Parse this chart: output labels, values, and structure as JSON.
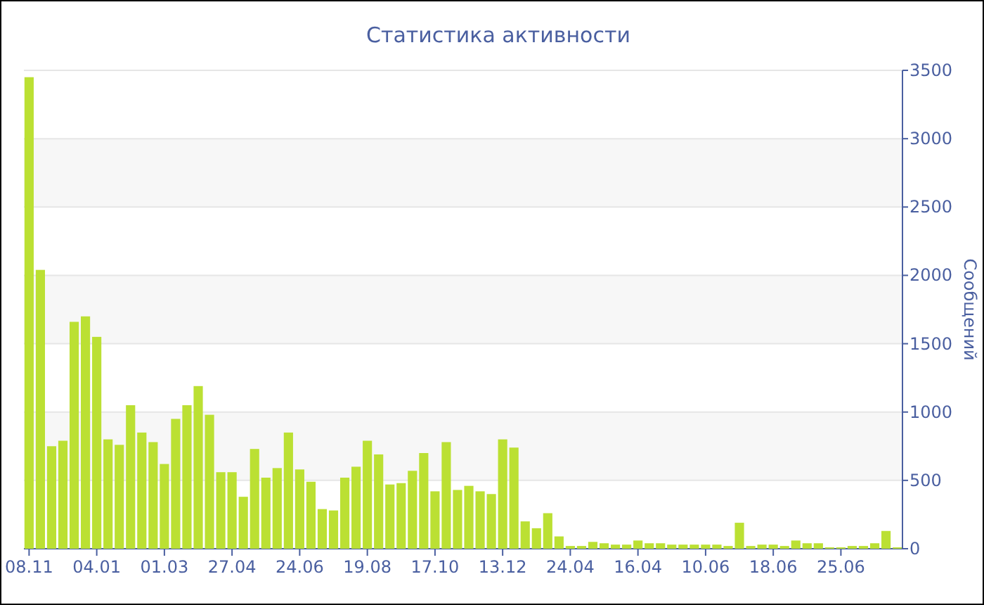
{
  "chart_data": {
    "type": "bar",
    "title": "Статистика активности",
    "ylabel": "Сообщений",
    "categories": [
      "08.11",
      null,
      null,
      null,
      null,
      null,
      "04.01",
      null,
      null,
      null,
      null,
      null,
      "01.03",
      null,
      null,
      null,
      null,
      null,
      "27.04",
      null,
      null,
      null,
      null,
      null,
      "24.06",
      null,
      null,
      null,
      null,
      null,
      "19.08",
      null,
      null,
      null,
      null,
      null,
      "17.10",
      null,
      null,
      null,
      null,
      null,
      "13.12",
      null,
      null,
      null,
      null,
      null,
      "24.04",
      null,
      null,
      null,
      null,
      null,
      "16.04",
      null,
      null,
      null,
      null,
      null,
      "10.06",
      null,
      null,
      null,
      null,
      null,
      "18.06",
      null,
      null,
      null,
      null,
      null,
      "25.06",
      null,
      null,
      null,
      null,
      null
    ],
    "values": [
      3450,
      2040,
      750,
      790,
      1660,
      1700,
      1550,
      800,
      760,
      1050,
      850,
      780,
      620,
      950,
      1050,
      1190,
      980,
      560,
      560,
      380,
      730,
      520,
      590,
      850,
      580,
      490,
      290,
      280,
      520,
      600,
      790,
      690,
      470,
      480,
      570,
      700,
      420,
      780,
      430,
      460,
      420,
      400,
      800,
      740,
      200,
      150,
      260,
      90,
      20,
      20,
      50,
      40,
      30,
      30,
      60,
      40,
      40,
      30,
      30,
      30,
      30,
      30,
      20,
      190,
      20,
      30,
      30,
      20,
      60,
      40,
      40,
      10,
      10,
      20,
      20,
      40,
      130,
      10
    ],
    "color": "#bbe033",
    "ylim": [
      0,
      3500
    ],
    "yticks": [
      0,
      500,
      1000,
      1500,
      2000,
      2500,
      3000,
      3500
    ],
    "grid": "y"
  }
}
